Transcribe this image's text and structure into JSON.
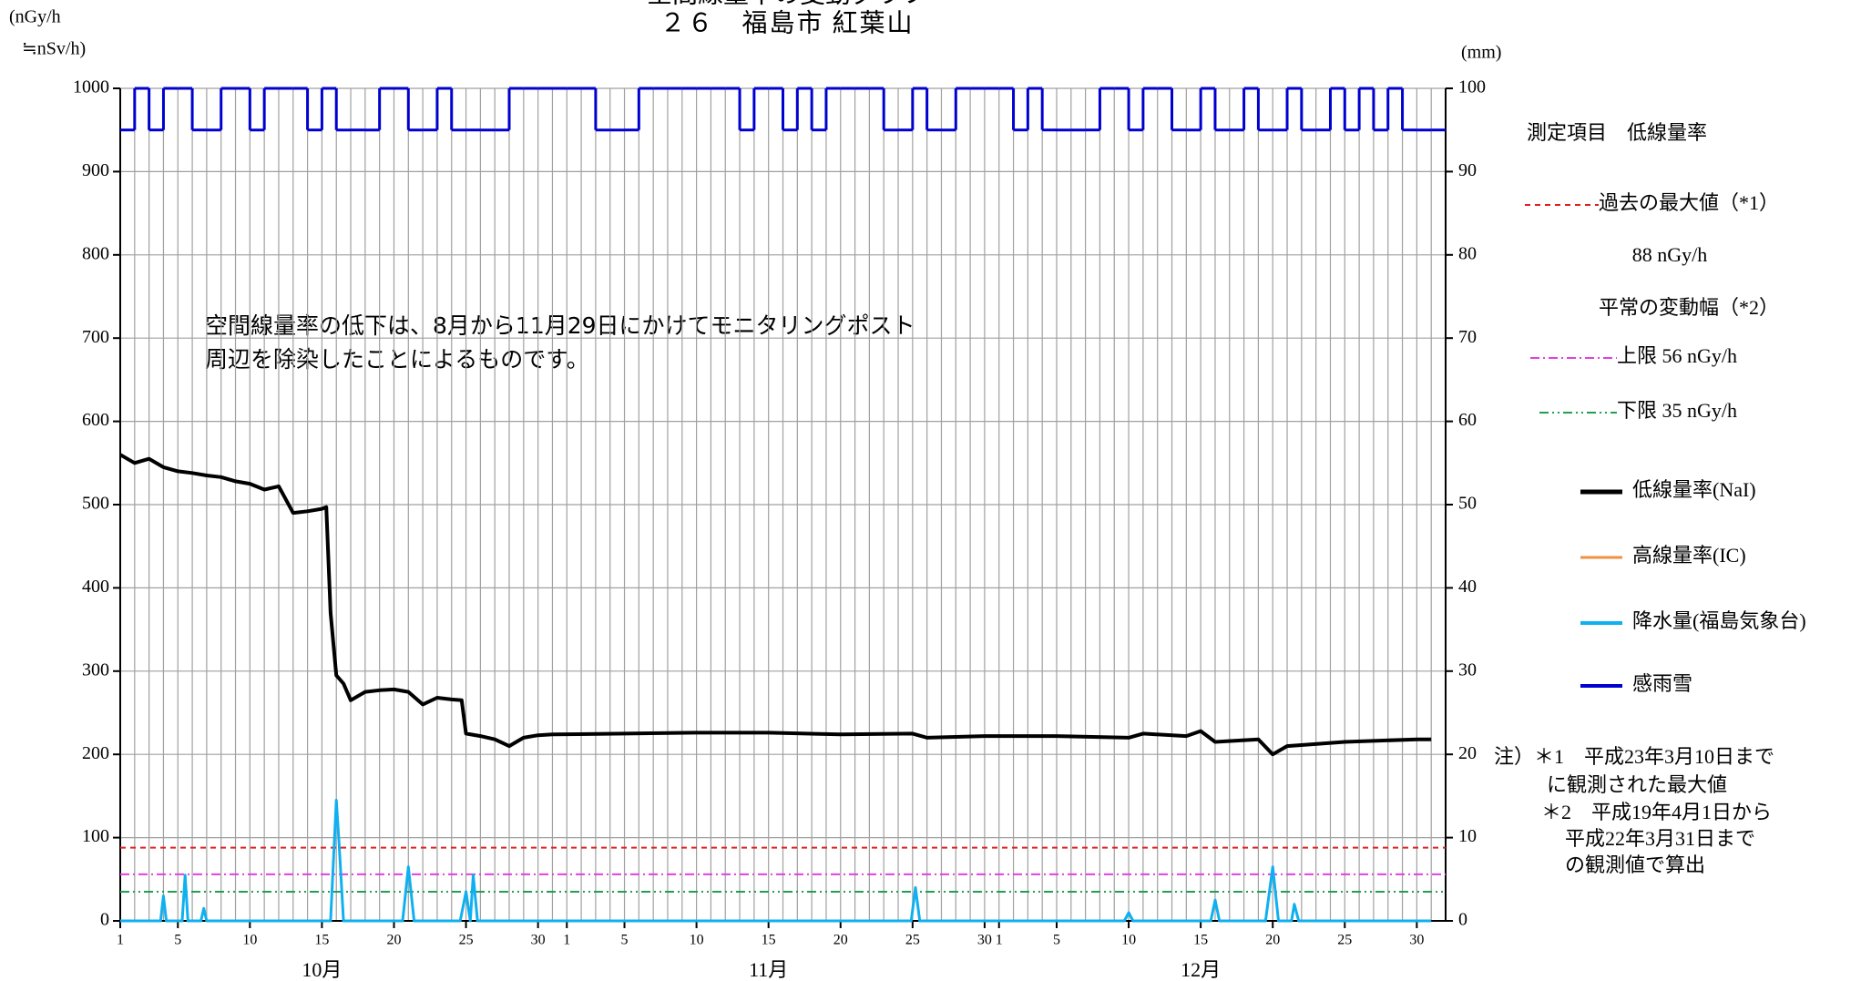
{
  "chart_data": {
    "type": "line",
    "title": "空間線量率の変動グラフ",
    "subtitle": "２６　福島市 紅葉山",
    "y_label": [
      "(nGy/h",
      "≒nSv/h)"
    ],
    "y2_label": "(mm)",
    "annotation": [
      "空間線量率の低下は、8月から11月29日にかけてモニタリングポスト",
      "周辺を除染したことによるものです。"
    ],
    "legend_title": "測定項目　低線量率",
    "reference_lines": [
      {
        "label": "過去の最大値（*1）",
        "value": 88,
        "value_label": "88 nGy/h",
        "color": "#e02020",
        "dash": "6 5"
      },
      {
        "label": "上限 56 nGy/h",
        "value": 56,
        "color": "#e040e0",
        "dash": "10 4 2 4"
      },
      {
        "label": "下限 35 nGy/h",
        "value": 35,
        "color": "#20a050",
        "dash": "10 4 2 4 2 4"
      }
    ],
    "reference_group_label": "平常の変動幅（*2）",
    "notes": [
      "注）＊1　平成23年3月10日まで",
      "に観測された最大値",
      "＊2　平成19年4月1日から",
      "平成22年3月31日まで",
      "の観測値で算出"
    ],
    "months": [
      "10月",
      "11月",
      "12月"
    ],
    "xlim": [
      0,
      92
    ],
    "xticks": [
      {
        "value": 0,
        "label": "1"
      },
      {
        "value": 4,
        "label": "5"
      },
      {
        "value": 9,
        "label": "10"
      },
      {
        "value": 14,
        "label": "15"
      },
      {
        "value": 19,
        "label": "20"
      },
      {
        "value": 24,
        "label": "25"
      },
      {
        "value": 29,
        "label": "30"
      },
      {
        "value": 31,
        "label": "1"
      },
      {
        "value": 35,
        "label": "5"
      },
      {
        "value": 40,
        "label": "10"
      },
      {
        "value": 45,
        "label": "15"
      },
      {
        "value": 50,
        "label": "20"
      },
      {
        "value": 55,
        "label": "25"
      },
      {
        "value": 60,
        "label": "30"
      },
      {
        "value": 61,
        "label": "1"
      },
      {
        "value": 65,
        "label": "5"
      },
      {
        "value": 70,
        "label": "10"
      },
      {
        "value": 75,
        "label": "15"
      },
      {
        "value": 80,
        "label": "20"
      },
      {
        "value": 85,
        "label": "25"
      },
      {
        "value": 90,
        "label": "30"
      }
    ],
    "ylim": [
      0,
      1000
    ],
    "yticks": [
      0,
      100,
      200,
      300,
      400,
      500,
      600,
      700,
      800,
      900,
      1000
    ],
    "y2lim": [
      0,
      100
    ],
    "y2ticks": [
      0,
      10,
      20,
      30,
      40,
      50,
      60,
      70,
      80,
      90,
      100
    ],
    "grid": true,
    "series": [
      {
        "name": "低線量率(NaI)",
        "color": "#000000",
        "width": 4,
        "x": [
          0,
          1,
          2,
          3,
          4,
          5,
          6,
          7,
          8,
          9,
          10,
          11,
          12,
          13,
          14,
          14.3,
          14.6,
          15,
          15.5,
          16,
          17,
          18,
          19,
          20,
          21,
          22,
          23,
          23.7,
          24,
          25,
          26,
          27,
          28,
          29,
          30,
          35,
          40,
          45,
          50,
          55,
          56,
          60,
          65,
          70,
          71,
          74,
          75,
          76,
          79,
          80,
          81,
          85,
          90,
          91
        ],
        "values": [
          560,
          550,
          555,
          545,
          540,
          538,
          535,
          533,
          528,
          525,
          518,
          522,
          490,
          492,
          495,
          497,
          370,
          295,
          285,
          265,
          275,
          277,
          278,
          275,
          260,
          268,
          266,
          265,
          225,
          222,
          218,
          210,
          220,
          223,
          224,
          225,
          226,
          226,
          224,
          225,
          220,
          222,
          222,
          220,
          225,
          222,
          228,
          215,
          218,
          200,
          210,
          215,
          218,
          218
        ]
      },
      {
        "name": "高線量率(IC)",
        "color": "#f09040",
        "width": 2,
        "x": [],
        "values": []
      },
      {
        "name": "降水量(福島気象台)",
        "color": "#10b0f0",
        "width": 3,
        "axis": "y2",
        "x": [
          0,
          2.8,
          3,
          3.2,
          4.3,
          4.5,
          4.7,
          5.6,
          5.8,
          6,
          14.6,
          15,
          15.2,
          15.5,
          19.6,
          20,
          20.4,
          23.6,
          24,
          24.3,
          24.5,
          24.8,
          54.9,
          55.2,
          55.5,
          69.7,
          70,
          70.3,
          75.7,
          76,
          76.3,
          79.5,
          80,
          80.4,
          81.3,
          81.5,
          81.8,
          91
        ],
        "values": [
          0,
          0,
          3,
          0,
          0,
          5.5,
          0,
          0,
          1.5,
          0,
          0,
          14.5,
          9,
          0,
          0,
          6.5,
          0,
          0,
          3.5,
          0,
          5.5,
          0,
          0,
          4,
          0,
          0,
          1,
          0,
          0,
          2.5,
          0,
          0,
          6.5,
          0,
          0,
          2,
          0,
          0
        ]
      },
      {
        "name": "感雨雪",
        "color": "#0000d0",
        "width": 3,
        "x": [
          0,
          1,
          2,
          3,
          4,
          5,
          6,
          7,
          8,
          9,
          10,
          11,
          12,
          13,
          14,
          15,
          16,
          17,
          18,
          19,
          20,
          21,
          22,
          23,
          24,
          25,
          26,
          27,
          28,
          29,
          30,
          31,
          32,
          33,
          34,
          35,
          36,
          37,
          38,
          39,
          40,
          41,
          42,
          43,
          44,
          45,
          46,
          47,
          48,
          49,
          50,
          51,
          52,
          53,
          54,
          55,
          56,
          57,
          58,
          59,
          60,
          61,
          62,
          63,
          64,
          65,
          66,
          67,
          68,
          69,
          70,
          71,
          72,
          73,
          74,
          75,
          76,
          77,
          78,
          79,
          80,
          81,
          82,
          83,
          84,
          85,
          86,
          87,
          88,
          89,
          90,
          91
        ],
        "values": [
          950,
          1000,
          950,
          1000,
          1000,
          950,
          950,
          1000,
          1000,
          950,
          1000,
          1000,
          1000,
          950,
          1000,
          950,
          950,
          950,
          1000,
          1000,
          950,
          950,
          1000,
          950,
          950,
          950,
          950,
          1000,
          1000,
          1000,
          1000,
          1000,
          1000,
          950,
          950,
          950,
          1000,
          1000,
          1000,
          1000,
          1000,
          1000,
          1000,
          950,
          1000,
          1000,
          950,
          1000,
          950,
          1000,
          1000,
          1000,
          1000,
          950,
          950,
          1000,
          950,
          950,
          1000,
          1000,
          1000,
          1000,
          950,
          1000,
          950,
          950,
          950,
          950,
          1000,
          1000,
          950,
          1000,
          1000,
          950,
          950,
          1000,
          950,
          950,
          1000,
          950,
          950,
          1000,
          950,
          950,
          1000,
          950,
          1000,
          950,
          1000,
          950,
          950,
          950
        ]
      }
    ]
  }
}
